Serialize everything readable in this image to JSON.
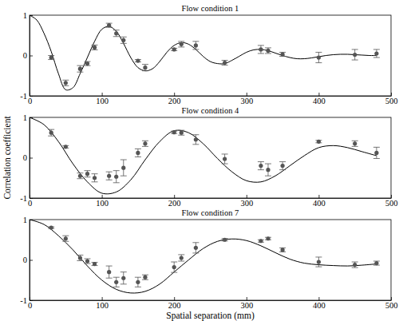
{
  "chart_data": [
    {
      "type": "line",
      "title": "Flow condition 1",
      "xlim": [
        0,
        500
      ],
      "ylim": [
        -1,
        1
      ],
      "xticks": [
        0,
        100,
        200,
        300,
        400,
        500
      ],
      "yticks": [
        -1,
        0,
        1
      ],
      "series": [
        {
          "type": "line",
          "color": "#000000",
          "line_style": "solid",
          "x": [
            0,
            10,
            20,
            30,
            40,
            50,
            60,
            70,
            80,
            90,
            100,
            110,
            120,
            130,
            140,
            150,
            160,
            170,
            180,
            190,
            200,
            210,
            220,
            230,
            240,
            250,
            260,
            270,
            280,
            290,
            300,
            310,
            320,
            330,
            340,
            350,
            360,
            370,
            380,
            390,
            400,
            410,
            420,
            430,
            440,
            450,
            460,
            470,
            480
          ],
          "values": [
            1,
            0.88,
            0.55,
            0.1,
            -0.45,
            -0.85,
            -0.8,
            -0.45,
            -0.05,
            0.35,
            0.65,
            0.72,
            0.6,
            0.3,
            -0.05,
            -0.3,
            -0.38,
            -0.33,
            -0.15,
            0.08,
            0.25,
            0.32,
            0.28,
            0.15,
            -0.02,
            -0.15,
            -0.2,
            -0.2,
            -0.12,
            -0.02,
            0.08,
            0.14,
            0.15,
            0.12,
            0.06,
            0,
            -0.05,
            -0.08,
            -0.08,
            -0.06,
            -0.03,
            0,
            0.02,
            0.03,
            0.03,
            0.02,
            0.01,
            0,
            0
          ]
        },
        {
          "type": "scatter",
          "color": "#555555",
          "marker": "circle",
          "x": [
            30,
            50,
            70,
            80,
            90,
            110,
            120,
            130,
            150,
            160,
            200,
            210,
            230,
            270,
            320,
            330,
            350,
            400,
            450,
            480
          ],
          "values": [
            -0.05,
            -0.68,
            -0.33,
            -0.2,
            0.2,
            0.75,
            0.55,
            0.38,
            -0.13,
            -0.3,
            0.15,
            0.28,
            0.25,
            -0.18,
            0.15,
            0.12,
            0.03,
            -0.05,
            0.02,
            0.05
          ],
          "errors": [
            0.05,
            0.07,
            0.08,
            0.05,
            0.06,
            0.05,
            0.08,
            0.08,
            0.03,
            0.08,
            0.03,
            0.07,
            0.1,
            0.06,
            0.1,
            0.07,
            0.05,
            0.13,
            0.13,
            0.1
          ]
        }
      ]
    },
    {
      "type": "line",
      "title": "Flow condition 4",
      "y_label": "Correlation coefficient",
      "xlim": [
        0,
        500
      ],
      "ylim": [
        -1,
        1
      ],
      "xticks": [
        0,
        100,
        200,
        300,
        400,
        500
      ],
      "yticks": [
        -1,
        0,
        1
      ],
      "series": [
        {
          "type": "line",
          "color": "#000000",
          "line_style": "solid",
          "x": [
            0,
            20,
            40,
            60,
            80,
            100,
            120,
            140,
            160,
            180,
            200,
            220,
            240,
            260,
            280,
            300,
            320,
            340,
            360,
            380,
            400,
            420,
            440,
            460,
            480
          ],
          "values": [
            1,
            0.82,
            0.4,
            -0.15,
            -0.6,
            -0.88,
            -0.85,
            -0.55,
            -0.05,
            0.4,
            0.67,
            0.62,
            0.35,
            -0.02,
            -0.35,
            -0.57,
            -0.6,
            -0.45,
            -0.2,
            0.05,
            0.25,
            0.3,
            0.25,
            0.15,
            0.05
          ]
        },
        {
          "type": "scatter",
          "color": "#555555",
          "marker": "circle",
          "x": [
            30,
            50,
            70,
            80,
            90,
            110,
            120,
            130,
            150,
            160,
            200,
            210,
            230,
            270,
            320,
            330,
            350,
            400,
            450,
            480
          ],
          "values": [
            0.62,
            0.27,
            -0.45,
            -0.4,
            -0.5,
            -0.45,
            -0.47,
            -0.25,
            0.12,
            0.35,
            0.63,
            0.62,
            0.45,
            -0.03,
            -0.2,
            -0.3,
            -0.2,
            0.4,
            0.35,
            0.12
          ],
          "errors": [
            0.08,
            0.03,
            0.07,
            0.08,
            0.1,
            0.1,
            0.15,
            0.2,
            0.1,
            0.07,
            0.03,
            0.06,
            0.12,
            0.12,
            0.1,
            0.15,
            0.1,
            0.03,
            0.07,
            0.14
          ]
        }
      ]
    },
    {
      "type": "line",
      "title": "Flow condition 7",
      "x_label": "Spatial separation (mm)",
      "xlim": [
        0,
        500
      ],
      "ylim": [
        -1,
        1
      ],
      "xticks": [
        0,
        100,
        200,
        300,
        400,
        500
      ],
      "yticks": [
        -1,
        0,
        1
      ],
      "series": [
        {
          "type": "line",
          "color": "#000000",
          "line_style": "solid",
          "x": [
            0,
            20,
            40,
            60,
            80,
            100,
            120,
            140,
            160,
            180,
            200,
            220,
            240,
            260,
            280,
            300,
            320,
            340,
            360,
            380,
            400,
            420,
            440,
            460,
            480
          ],
          "values": [
            1,
            0.88,
            0.6,
            0.25,
            -0.15,
            -0.5,
            -0.73,
            -0.82,
            -0.78,
            -0.6,
            -0.3,
            0,
            0.28,
            0.46,
            0.52,
            0.48,
            0.35,
            0.18,
            0.02,
            -0.08,
            -0.12,
            -0.14,
            -0.15,
            -0.13,
            -0.1
          ]
        },
        {
          "type": "scatter",
          "color": "#555555",
          "marker": "circle",
          "x": [
            30,
            50,
            70,
            80,
            90,
            110,
            120,
            130,
            150,
            160,
            200,
            210,
            230,
            270,
            320,
            330,
            350,
            400,
            450,
            480
          ],
          "values": [
            0.8,
            0.53,
            0.05,
            -0.03,
            -0.1,
            -0.3,
            -0.55,
            -0.45,
            -0.55,
            -0.43,
            -0.18,
            0.05,
            0.3,
            0.5,
            0.47,
            0.53,
            0.25,
            -0.05,
            -0.12,
            -0.08
          ],
          "errors": [
            0.02,
            0.07,
            0.07,
            0.06,
            0.04,
            0.15,
            0.12,
            0.15,
            0.12,
            0.06,
            0.13,
            0.08,
            0.13,
            0.03,
            0.03,
            0.03,
            0.05,
            0.12,
            0.07,
            0.05
          ]
        }
      ]
    }
  ]
}
